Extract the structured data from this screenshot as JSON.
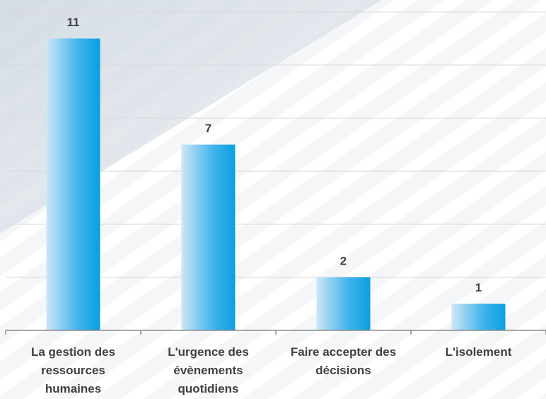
{
  "chart_data": {
    "type": "bar",
    "categories": [
      "La gestion des ressources humaines",
      "L'urgence des évènements quotidiens",
      "Faire accepter des décisions",
      "L'isolement"
    ],
    "values": [
      11,
      7,
      2,
      1
    ],
    "color": "#0a9fe0",
    "ylim": [
      0,
      12
    ],
    "yticks": [
      0,
      2,
      4,
      6,
      8,
      10,
      12
    ],
    "grid": true
  }
}
